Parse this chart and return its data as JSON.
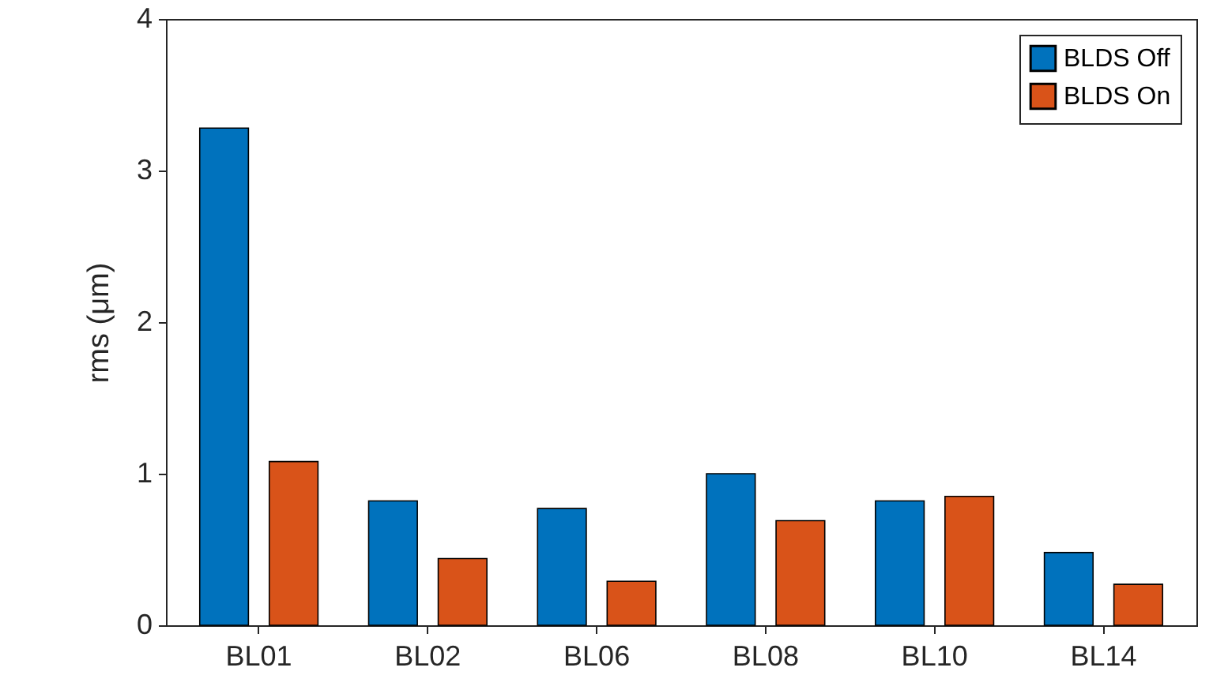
{
  "chart_data": {
    "type": "bar",
    "ylabel": "rms (μm)",
    "categories": [
      "BL01",
      "BL02",
      "BL06",
      "BL08",
      "BL10",
      "BL14"
    ],
    "series": [
      {
        "name": "BLDS Off",
        "color": "#0072bd",
        "values": [
          3.28,
          0.82,
          0.77,
          1.0,
          0.82,
          0.48
        ]
      },
      {
        "name": "BLDS On",
        "color": "#d95319",
        "values": [
          1.08,
          0.44,
          0.29,
          0.69,
          0.85,
          0.27
        ]
      }
    ],
    "ylim": [
      0,
      4
    ],
    "yticks": [
      0,
      1,
      2,
      3,
      4
    ],
    "grid": false,
    "legend": "top right"
  }
}
